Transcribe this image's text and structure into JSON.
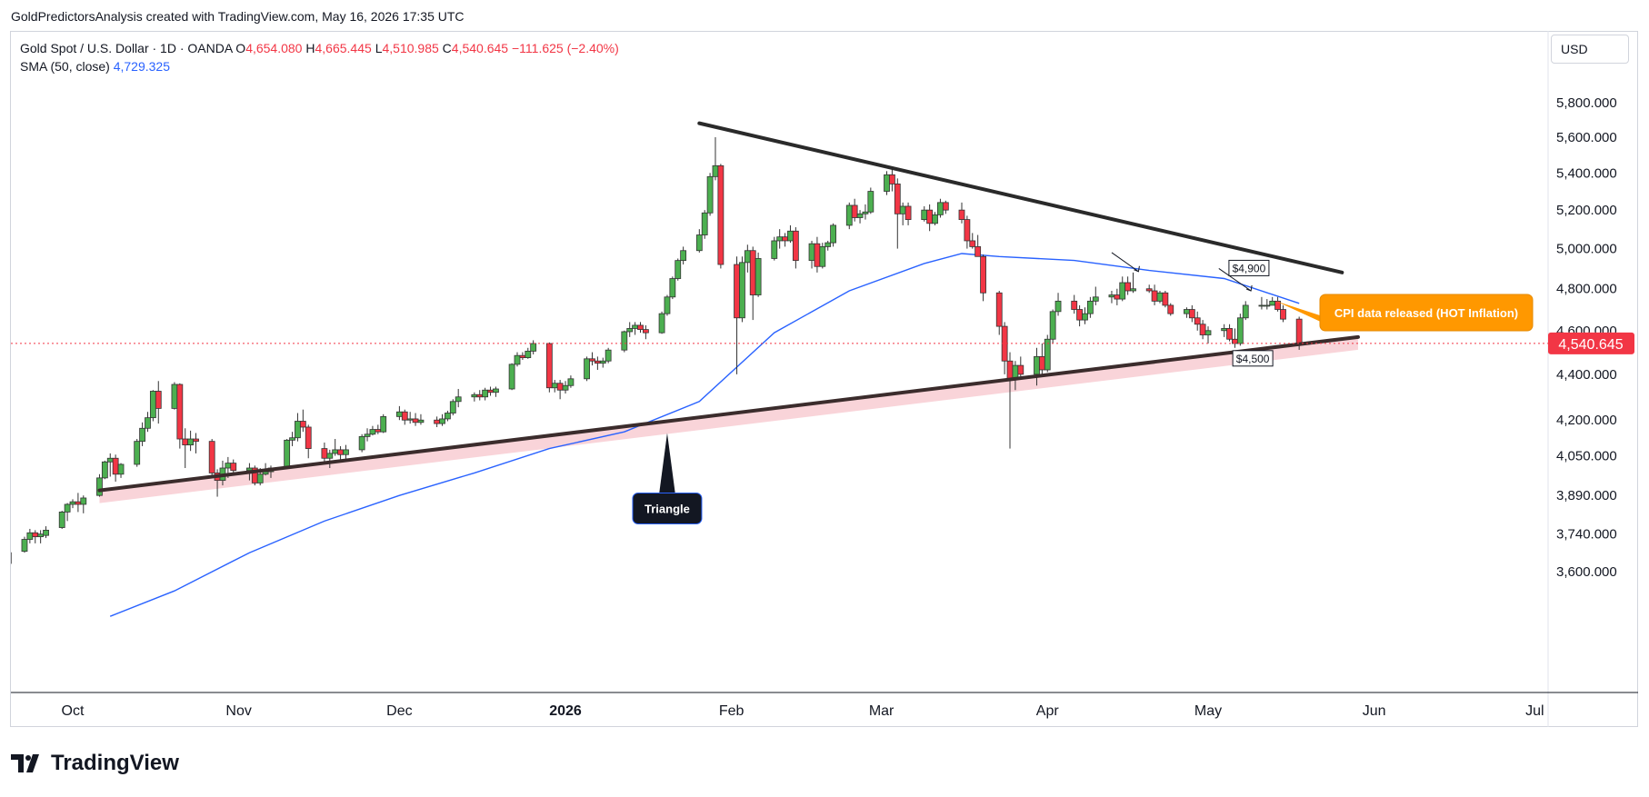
{
  "credit": "GoldPredictorsAnalysis created with TradingView.com, May 16, 2026 17:35 UTC",
  "legend": {
    "symbol": "Gold Spot / U.S. Dollar · 1D · OANDA",
    "open_label": "O",
    "open": "4,654.080",
    "high_label": "H",
    "high": "4,665.445",
    "low_label": "L",
    "low": "4,510.985",
    "close_label": "C",
    "close": "4,540.645",
    "change": "−111.625 (−2.40%)",
    "sma_label": "SMA (50, close)",
    "sma_value": "4,729.325"
  },
  "currency": "USD",
  "logo_text": "TradingView",
  "colors": {
    "up": "#089981",
    "up_fill": "#4caf50",
    "down": "#f23645",
    "sma": "#2962ff",
    "trendline": "#2a2a2a",
    "support": "#3b2c2c",
    "callout": "#ff9800",
    "label_dark": "#131722",
    "price_badge": "#f23645"
  },
  "chart_data": {
    "type": "candlestick",
    "x_axis": {
      "tick_labels": [
        "Oct",
        "Nov",
        "Dec",
        "2026",
        "Feb",
        "Mar",
        "Apr",
        "May",
        "Jun",
        "Jul"
      ]
    },
    "y_axis": {
      "scale": "log",
      "tick_labels": [
        "5,800.000",
        "5,600.000",
        "5,400.000",
        "5,200.000",
        "5,000.000",
        "4,800.000",
        "4,600.000",
        "4,400.000",
        "4,200.000",
        "4,050.000",
        "3,890.000",
        "3,740.000",
        "3,600.000"
      ],
      "range": [
        3495,
        6060
      ]
    },
    "last_price_badge": "4,540.645",
    "last_price": 4540.645,
    "candles": [
      [
        "2025-09-19",
        3630,
        3680,
        3620,
        3670
      ],
      [
        "2025-09-22",
        3675,
        3730,
        3670,
        3720
      ],
      [
        "2025-09-23",
        3720,
        3760,
        3705,
        3745
      ],
      [
        "2025-09-24",
        3745,
        3755,
        3705,
        3730
      ],
      [
        "2025-09-25",
        3730,
        3755,
        3705,
        3740
      ],
      [
        "2025-09-26",
        3735,
        3770,
        3725,
        3755
      ],
      [
        "2025-09-29",
        3765,
        3830,
        3760,
        3825
      ],
      [
        "2025-09-30",
        3825,
        3860,
        3790,
        3855
      ],
      [
        "2025-10-01",
        3855,
        3875,
        3840,
        3865
      ],
      [
        "2025-10-02",
        3865,
        3900,
        3825,
        3855
      ],
      [
        "2025-10-03",
        3855,
        3890,
        3820,
        3880
      ],
      [
        "2025-10-06",
        3890,
        3975,
        3885,
        3960
      ],
      [
        "2025-10-07",
        3960,
        4030,
        3955,
        4025
      ],
      [
        "2025-10-08",
        4025,
        4060,
        3965,
        4040
      ],
      [
        "2025-10-09",
        4040,
        4055,
        3945,
        3975
      ],
      [
        "2025-10-10",
        3975,
        4020,
        3960,
        4015
      ],
      [
        "2025-10-13",
        4015,
        4120,
        4005,
        4110
      ],
      [
        "2025-10-14",
        4110,
        4190,
        4090,
        4165
      ],
      [
        "2025-10-15",
        4165,
        4235,
        4150,
        4210
      ],
      [
        "2025-10-16",
        4210,
        4330,
        4195,
        4325
      ],
      [
        "2025-10-17",
        4325,
        4370,
        4185,
        4250
      ],
      [
        "2025-10-20",
        4250,
        4365,
        4245,
        4355
      ],
      [
        "2025-10-21",
        4355,
        4360,
        4080,
        4120
      ],
      [
        "2025-10-22",
        4120,
        4165,
        4000,
        4095
      ],
      [
        "2025-10-23",
        4095,
        4155,
        4070,
        4120
      ],
      [
        "2025-10-24",
        4120,
        4145,
        4060,
        4110
      ],
      [
        "2025-10-27",
        4110,
        4120,
        3970,
        3980
      ],
      [
        "2025-10-28",
        3980,
        3995,
        3885,
        3950
      ],
      [
        "2025-10-29",
        3950,
        4030,
        3930,
        4000
      ],
      [
        "2025-10-30",
        4000,
        4045,
        3960,
        4020
      ],
      [
        "2025-10-31",
        4020,
        4035,
        3970,
        3990
      ],
      [
        "2025-11-03",
        3990,
        4020,
        3950,
        4000
      ],
      [
        "2025-11-04",
        4000,
        4010,
        3930,
        3940
      ],
      [
        "2025-11-05",
        3940,
        4000,
        3930,
        3975
      ],
      [
        "2025-11-06",
        3975,
        4020,
        3970,
        3985
      ],
      [
        "2025-11-07",
        3985,
        4010,
        3960,
        4000
      ],
      [
        "2025-11-10",
        4000,
        4120,
        3995,
        4115
      ],
      [
        "2025-11-11",
        4115,
        4150,
        4090,
        4125
      ],
      [
        "2025-11-12",
        4125,
        4230,
        4110,
        4195
      ],
      [
        "2025-11-13",
        4195,
        4245,
        4150,
        4170
      ],
      [
        "2025-11-14",
        4170,
        4180,
        4040,
        4080
      ],
      [
        "2025-11-17",
        4080,
        4105,
        4020,
        4040
      ],
      [
        "2025-11-18",
        4040,
        4075,
        4000,
        4060
      ],
      [
        "2025-11-19",
        4060,
        4120,
        4050,
        4075
      ],
      [
        "2025-11-20",
        4075,
        4090,
        4035,
        4055
      ],
      [
        "2025-11-21",
        4055,
        4095,
        4030,
        4075
      ],
      [
        "2025-11-24",
        4075,
        4140,
        4065,
        4130
      ],
      [
        "2025-11-25",
        4130,
        4165,
        4110,
        4140
      ],
      [
        "2025-11-26",
        4140,
        4175,
        4135,
        4160
      ],
      [
        "2025-11-27",
        4160,
        4180,
        4140,
        4150
      ],
      [
        "2025-11-28",
        4150,
        4225,
        4145,
        4215
      ],
      [
        "2025-12-01",
        4215,
        4260,
        4200,
        4235
      ],
      [
        "2025-12-02",
        4235,
        4245,
        4180,
        4200
      ],
      [
        "2025-12-03",
        4200,
        4235,
        4185,
        4205
      ],
      [
        "2025-12-04",
        4205,
        4230,
        4175,
        4190
      ],
      [
        "2025-12-05",
        4190,
        4225,
        4180,
        4200
      ],
      [
        "2025-12-08",
        4200,
        4215,
        4170,
        4185
      ],
      [
        "2025-12-09",
        4185,
        4225,
        4175,
        4205
      ],
      [
        "2025-12-10",
        4205,
        4240,
        4195,
        4230
      ],
      [
        "2025-12-11",
        4230,
        4290,
        4220,
        4280
      ],
      [
        "2025-12-12",
        4280,
        4335,
        4255,
        4300
      ],
      [
        "2025-12-15",
        4300,
        4320,
        4280,
        4310
      ],
      [
        "2025-12-16",
        4310,
        4330,
        4285,
        4300
      ],
      [
        "2025-12-17",
        4300,
        4340,
        4285,
        4330
      ],
      [
        "2025-12-18",
        4330,
        4345,
        4305,
        4320
      ],
      [
        "2025-12-19",
        4320,
        4345,
        4300,
        4335
      ],
      [
        "2025-12-22",
        4335,
        4450,
        4330,
        4445
      ],
      [
        "2025-12-23",
        4445,
        4500,
        4435,
        4485
      ],
      [
        "2025-12-24",
        4485,
        4500,
        4465,
        4475
      ],
      [
        "2025-12-25",
        4475,
        4520,
        4470,
        4505
      ],
      [
        "2025-12-26",
        4505,
        4555,
        4490,
        4540
      ],
      [
        "2025-12-29",
        4540,
        4545,
        4320,
        4340
      ],
      [
        "2025-12-30",
        4340,
        4375,
        4320,
        4360
      ],
      [
        "2025-12-31",
        4360,
        4375,
        4290,
        4330
      ],
      [
        "2026-01-01",
        4330,
        4370,
        4315,
        4350
      ],
      [
        "2026-01-02",
        4350,
        4395,
        4340,
        4380
      ],
      [
        "2026-01-05",
        4380,
        4480,
        4370,
        4470
      ],
      [
        "2026-01-06",
        4470,
        4500,
        4440,
        4460
      ],
      [
        "2026-01-07",
        4460,
        4480,
        4420,
        4450
      ],
      [
        "2026-01-08",
        4450,
        4475,
        4430,
        4460
      ],
      [
        "2026-01-09",
        4460,
        4520,
        4450,
        4510
      ],
      [
        "2026-01-12",
        4510,
        4600,
        4500,
        4595
      ],
      [
        "2026-01-13",
        4595,
        4640,
        4570,
        4610
      ],
      [
        "2026-01-14",
        4610,
        4640,
        4580,
        4625
      ],
      [
        "2026-01-15",
        4625,
        4640,
        4590,
        4605
      ],
      [
        "2026-01-16",
        4605,
        4625,
        4560,
        4590
      ],
      [
        "2026-01-19",
        4590,
        4690,
        4585,
        4680
      ],
      [
        "2026-01-20",
        4680,
        4770,
        4670,
        4760
      ],
      [
        "2026-01-21",
        4760,
        4860,
        4750,
        4850
      ],
      [
        "2026-01-22",
        4850,
        4950,
        4840,
        4940
      ],
      [
        "2026-01-23",
        4940,
        5010,
        4920,
        4990
      ],
      [
        "2026-01-26",
        4990,
        5100,
        4980,
        5070
      ],
      [
        "2026-01-27",
        5070,
        5200,
        5050,
        5185
      ],
      [
        "2026-01-28",
        5185,
        5400,
        5170,
        5380
      ],
      [
        "2026-01-29",
        5380,
        5600,
        5360,
        5440
      ],
      [
        "2026-01-30",
        5440,
        5450,
        4900,
        4920
      ],
      [
        "2026-02-02",
        4920,
        4960,
        4400,
        4660
      ],
      [
        "2026-02-03",
        4660,
        4960,
        4640,
        4930
      ],
      [
        "2026-02-04",
        4930,
        5020,
        4880,
        4990
      ],
      [
        "2026-02-05",
        4990,
        5010,
        4650,
        4770
      ],
      [
        "2026-02-06",
        4770,
        4980,
        4760,
        4950
      ],
      [
        "2026-02-09",
        4950,
        5060,
        4940,
        5040
      ],
      [
        "2026-02-10",
        5040,
        5100,
        5000,
        5060
      ],
      [
        "2026-02-11",
        5060,
        5080,
        5010,
        5040
      ],
      [
        "2026-02-12",
        5040,
        5120,
        5030,
        5090
      ],
      [
        "2026-02-13",
        5090,
        5110,
        4900,
        4940
      ],
      [
        "2026-02-16",
        4940,
        5040,
        4900,
        5025
      ],
      [
        "2026-02-17",
        5025,
        5060,
        4880,
        4910
      ],
      [
        "2026-02-18",
        4910,
        5030,
        4900,
        5010
      ],
      [
        "2026-02-19",
        5010,
        5040,
        4990,
        5030
      ],
      [
        "2026-02-20",
        5030,
        5130,
        5010,
        5120
      ],
      [
        "2026-02-23",
        5120,
        5240,
        5100,
        5225
      ],
      [
        "2026-02-24",
        5225,
        5260,
        5140,
        5160
      ],
      [
        "2026-02-25",
        5160,
        5200,
        5130,
        5180
      ],
      [
        "2026-02-26",
        5180,
        5230,
        5150,
        5190
      ],
      [
        "2026-02-27",
        5190,
        5320,
        5180,
        5300
      ],
      [
        "2026-03-02",
        5300,
        5410,
        5280,
        5390
      ],
      [
        "2026-03-03",
        5390,
        5420,
        5300,
        5340
      ],
      [
        "2026-03-04",
        5340,
        5370,
        5000,
        5180
      ],
      [
        "2026-03-05",
        5180,
        5240,
        5120,
        5220
      ],
      [
        "2026-03-06",
        5220,
        5240,
        5120,
        5150
      ],
      [
        "2026-03-09",
        5150,
        5220,
        5140,
        5200
      ],
      [
        "2026-03-10",
        5200,
        5230,
        5090,
        5130
      ],
      [
        "2026-03-11",
        5130,
        5190,
        5120,
        5175
      ],
      [
        "2026-03-12",
        5175,
        5260,
        5160,
        5240
      ],
      [
        "2026-03-13",
        5240,
        5250,
        5180,
        5200
      ],
      [
        "2026-03-16",
        5200,
        5240,
        5130,
        5150
      ],
      [
        "2026-03-17",
        5150,
        5170,
        5000,
        5040
      ],
      [
        "2026-03-18",
        5040,
        5080,
        5000,
        5010
      ],
      [
        "2026-03-19",
        5010,
        5070,
        4960,
        4960
      ],
      [
        "2026-03-20",
        4960,
        4970,
        4740,
        4780
      ],
      [
        "2026-03-23",
        4780,
        4790,
        4580,
        4620
      ],
      [
        "2026-03-24",
        4620,
        4640,
        4400,
        4460
      ],
      [
        "2026-03-25",
        4460,
        4500,
        4080,
        4380
      ],
      [
        "2026-03-26",
        4380,
        4460,
        4330,
        4440
      ],
      [
        "2026-03-27",
        4440,
        4480,
        4390,
        4400
      ],
      [
        "2026-03-30",
        4400,
        4520,
        4350,
        4480
      ],
      [
        "2026-03-31",
        4480,
        4540,
        4400,
        4420
      ],
      [
        "2026-04-01",
        4420,
        4580,
        4410,
        4560
      ],
      [
        "2026-04-02",
        4560,
        4700,
        4540,
        4690
      ],
      [
        "2026-04-03",
        4690,
        4780,
        4670,
        4740
      ],
      [
        "2026-04-06",
        4740,
        4770,
        4680,
        4700
      ],
      [
        "2026-04-07",
        4700,
        4720,
        4620,
        4650
      ],
      [
        "2026-04-08",
        4650,
        4710,
        4630,
        4680
      ],
      [
        "2026-04-09",
        4680,
        4760,
        4660,
        4740
      ],
      [
        "2026-04-10",
        4740,
        4810,
        4720,
        4760
      ],
      [
        "2026-04-13",
        4760,
        4790,
        4730,
        4770
      ],
      [
        "2026-04-14",
        4770,
        4800,
        4720,
        4750
      ],
      [
        "2026-04-15",
        4750,
        4860,
        4740,
        4830
      ],
      [
        "2026-04-16",
        4830,
        4860,
        4770,
        4790
      ],
      [
        "2026-04-17",
        4790,
        4880,
        4780,
        4800
      ],
      [
        "2026-04-20",
        4800,
        4820,
        4780,
        4790
      ],
      [
        "2026-04-21",
        4790,
        4820,
        4720,
        4740
      ],
      [
        "2026-04-22",
        4740,
        4790,
        4730,
        4780
      ],
      [
        "2026-04-23",
        4780,
        4790,
        4710,
        4720
      ],
      [
        "2026-04-24",
        4720,
        4730,
        4670,
        4680
      ],
      [
        "2026-04-27",
        4680,
        4710,
        4660,
        4700
      ],
      [
        "2026-04-28",
        4700,
        4720,
        4640,
        4660
      ],
      [
        "2026-04-29",
        4660,
        4690,
        4600,
        4630
      ],
      [
        "2026-04-30",
        4630,
        4650,
        4560,
        4580
      ],
      [
        "2026-05-01",
        4580,
        4620,
        4540,
        4600
      ],
      [
        "2026-05-04",
        4600,
        4630,
        4570,
        4610
      ],
      [
        "2026-05-05",
        4610,
        4630,
        4550,
        4560
      ],
      [
        "2026-05-06",
        4560,
        4610,
        4520,
        4540
      ],
      [
        "2026-05-07",
        4540,
        4680,
        4530,
        4660
      ],
      [
        "2026-05-08",
        4660,
        4740,
        4650,
        4720
      ],
      [
        "2026-05-11",
        4720,
        4760,
        4700,
        4720
      ],
      [
        "2026-05-12",
        4720,
        4750,
        4700,
        4720
      ],
      [
        "2026-05-13",
        4720,
        4760,
        4720,
        4740
      ],
      [
        "2026-05-14",
        4740,
        4760,
        4690,
        4700
      ],
      [
        "2026-05-15",
        4700,
        4720,
        4640,
        4654
      ],
      [
        "2026-05-18",
        4654.08,
        4665.445,
        4510.985,
        4540.645
      ]
    ],
    "sma": {
      "name": "SMA (50, close)",
      "points": [
        [
          "2025-10-08",
          3440
        ],
        [
          "2025-10-20",
          3530
        ],
        [
          "2025-11-03",
          3670
        ],
        [
          "2025-11-17",
          3790
        ],
        [
          "2025-12-01",
          3890
        ],
        [
          "2025-12-15",
          3980
        ],
        [
          "2025-12-29",
          4080
        ],
        [
          "2026-01-12",
          4150
        ],
        [
          "2026-01-26",
          4280
        ],
        [
          "2026-02-09",
          4590
        ],
        [
          "2026-02-23",
          4790
        ],
        [
          "2026-03-09",
          4925
        ],
        [
          "2026-03-16",
          4975
        ],
        [
          "2026-03-23",
          4960
        ],
        [
          "2026-04-06",
          4940
        ],
        [
          "2026-04-20",
          4890
        ],
        [
          "2026-05-04",
          4850
        ],
        [
          "2026-05-18",
          4729.325
        ]
      ]
    },
    "drawings": {
      "resistance_line": [
        [
          "2026-01-26",
          5680
        ],
        [
          "2026-05-26",
          4880
        ]
      ],
      "support_line": [
        [
          "2025-10-06",
          3910
        ],
        [
          "2026-05-29",
          4570
        ]
      ],
      "label_4900": "$4,900",
      "label_4500": "$4,500",
      "triangle_label": "Triangle",
      "cpi_callout": "CPI data released (HOT Inflation)"
    }
  }
}
